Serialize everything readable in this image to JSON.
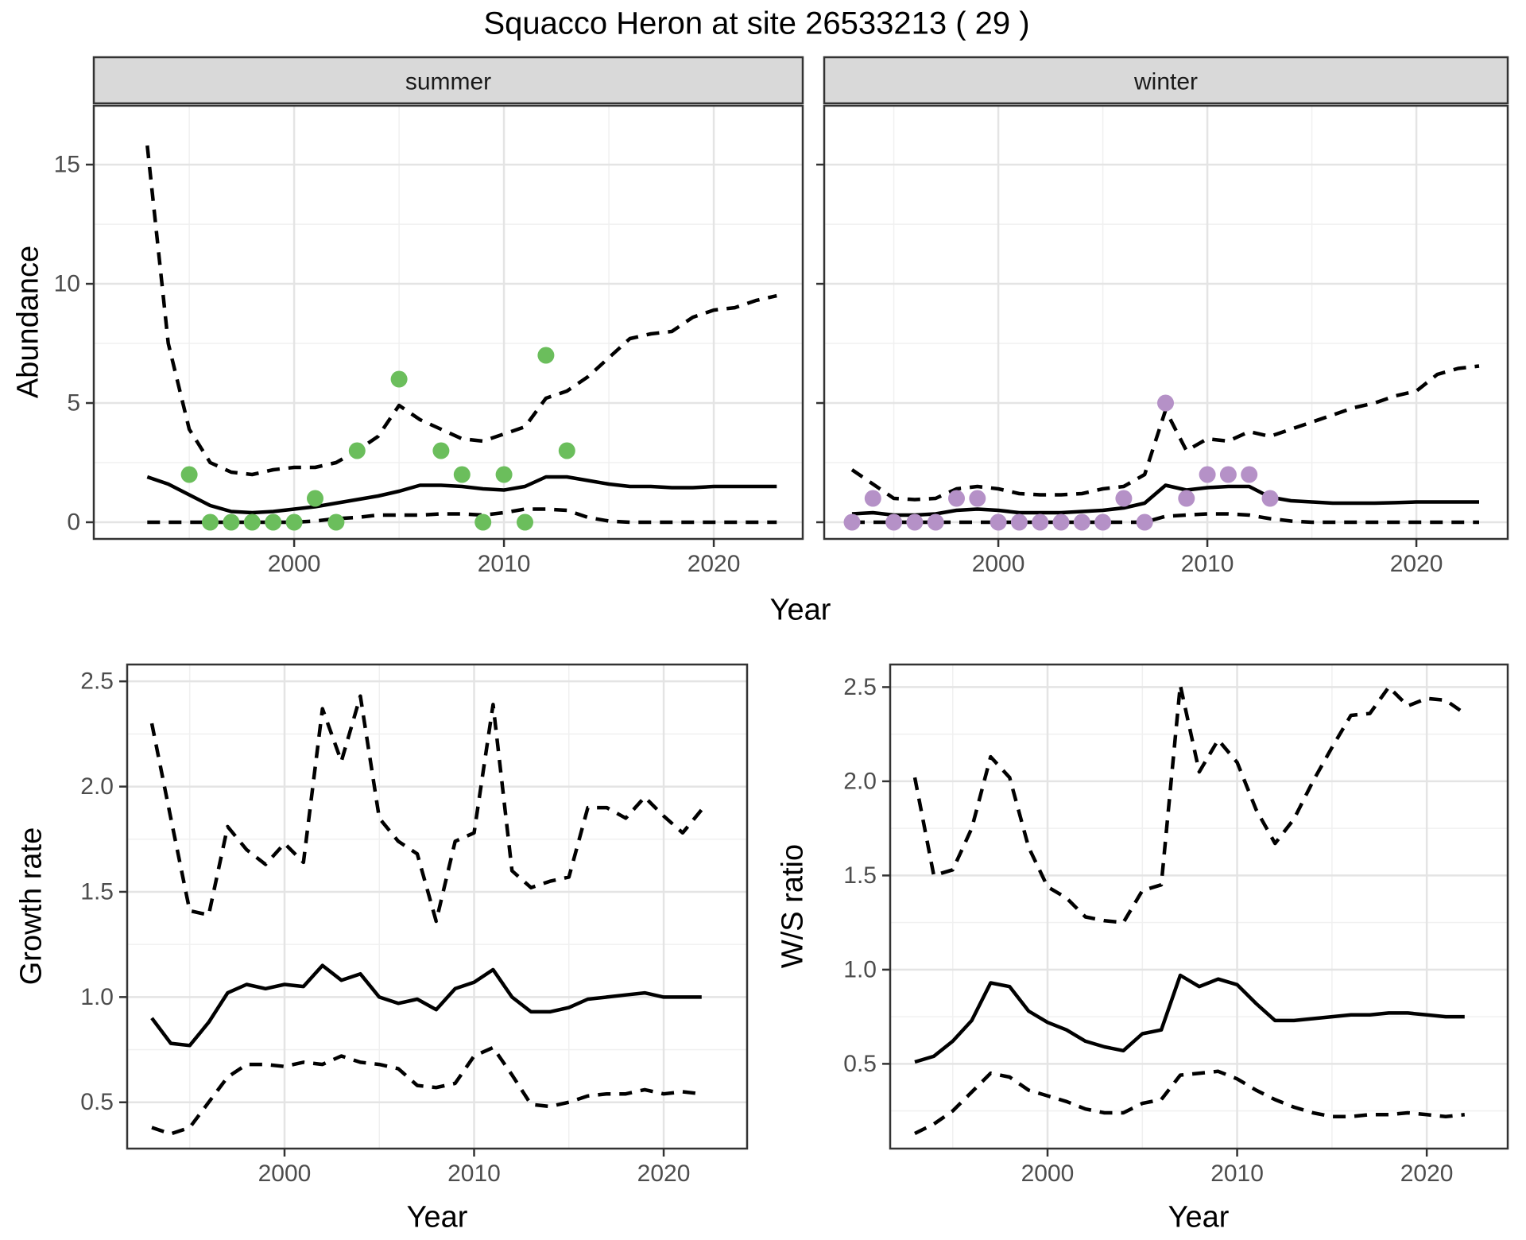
{
  "title": "Squacco Heron at site 26533213 ( 29 )",
  "axis_titles": {
    "abundance": "Abundance",
    "growth": "Growth rate",
    "ws": "W/S ratio",
    "year_top": "Year",
    "year_bottom_left": "Year",
    "year_bottom_right": "Year"
  },
  "colors": {
    "summer_points": "#6BBE5C",
    "winter_points": "#B591C7",
    "line": "#000000",
    "strip_bg": "#D9D9D9",
    "panel_border": "#333333",
    "grid_major": "#e4e4e4",
    "grid_minor": "#f0f0f0",
    "tick_text": "#4d4d4d"
  },
  "chart_data": [
    {
      "id": "abundance-summer",
      "type": "line",
      "facet_label": "summer",
      "ylabel": "Abundance",
      "xlabel": "Year",
      "show_y_labels": true,
      "x_range": [
        1990.45,
        2024.24
      ],
      "y_range": [
        -0.7,
        17.47
      ],
      "x_ticks": {
        "major": [
          2000,
          2010,
          2020
        ],
        "labels": [
          "2000",
          "2010",
          "2020"
        ],
        "minor": [
          1995,
          2005,
          2015
        ]
      },
      "y_ticks": {
        "major": [
          0,
          5,
          10,
          15
        ],
        "labels": [
          "0",
          "5",
          "10",
          "15"
        ],
        "minor": [
          2.5,
          7.5,
          12.5
        ]
      },
      "x": [
        1993,
        1994,
        1995,
        1996,
        1997,
        1998,
        1999,
        2000,
        2001,
        2002,
        2003,
        2004,
        2005,
        2006,
        2007,
        2008,
        2009,
        2010,
        2011,
        2012,
        2013,
        2014,
        2015,
        2016,
        2017,
        2018,
        2019,
        2020,
        2021,
        2022,
        2023
      ],
      "series": [
        {
          "name": "upper-ci",
          "style": "dashed",
          "values": [
            15.8,
            7.5,
            3.9,
            2.5,
            2.1,
            2.0,
            2.2,
            2.3,
            2.3,
            2.5,
            3.0,
            3.6,
            4.9,
            4.3,
            3.9,
            3.5,
            3.4,
            3.7,
            4.0,
            5.2,
            5.5,
            6.1,
            6.9,
            7.7,
            7.9,
            8.0,
            8.6,
            8.9,
            9.0,
            9.3,
            9.5
          ]
        },
        {
          "name": "fit",
          "style": "solid",
          "values": [
            1.9,
            1.6,
            1.15,
            0.7,
            0.45,
            0.4,
            0.45,
            0.55,
            0.65,
            0.8,
            0.95,
            1.1,
            1.3,
            1.55,
            1.55,
            1.5,
            1.4,
            1.35,
            1.5,
            1.9,
            1.9,
            1.75,
            1.6,
            1.5,
            1.5,
            1.45,
            1.45,
            1.5,
            1.5,
            1.5,
            1.5
          ]
        },
        {
          "name": "lower-ci",
          "style": "dashed",
          "values": [
            0,
            0,
            0,
            0,
            0,
            0,
            0,
            0,
            0.05,
            0.15,
            0.2,
            0.3,
            0.3,
            0.3,
            0.35,
            0.35,
            0.3,
            0.4,
            0.55,
            0.55,
            0.5,
            0.2,
            0.05,
            0,
            0,
            0,
            0,
            0,
            0,
            0,
            0
          ]
        }
      ],
      "observations": {
        "name": "observed-counts-summer",
        "color": "#6BBE5C",
        "years": [
          1995,
          1996,
          1997,
          1998,
          1999,
          2000,
          2001,
          2002,
          2003,
          2005,
          2007,
          2008,
          2009,
          2010,
          2011,
          2012,
          2013
        ],
        "values": [
          2,
          0,
          0,
          0,
          0,
          0,
          1,
          0,
          3,
          6,
          3,
          2,
          0,
          2,
          0,
          7,
          3
        ]
      }
    },
    {
      "id": "abundance-winter",
      "type": "line",
      "facet_label": "winter",
      "ylabel": "Abundance",
      "xlabel": "Year",
      "show_y_labels": false,
      "x_range": [
        1991.67,
        2024.37
      ],
      "y_range": [
        -0.7,
        17.47
      ],
      "x_ticks": {
        "major": [
          2000,
          2010,
          2020
        ],
        "labels": [
          "2000",
          "2010",
          "2020"
        ],
        "minor": [
          1995,
          2005,
          2015
        ]
      },
      "y_ticks": {
        "major": [
          0,
          5,
          10,
          15
        ],
        "labels": [
          "0",
          "5",
          "10",
          "15"
        ],
        "minor": [
          2.5,
          7.5,
          12.5
        ]
      },
      "x": [
        1993,
        1994,
        1995,
        1996,
        1997,
        1998,
        1999,
        2000,
        2001,
        2002,
        2003,
        2004,
        2005,
        2006,
        2007,
        2008,
        2009,
        2010,
        2011,
        2012,
        2013,
        2014,
        2015,
        2016,
        2017,
        2018,
        2019,
        2020,
        2021,
        2022,
        2023
      ],
      "series": [
        {
          "name": "upper-ci",
          "style": "dashed",
          "values": [
            2.2,
            1.6,
            1.0,
            0.95,
            1.0,
            1.4,
            1.5,
            1.4,
            1.2,
            1.15,
            1.15,
            1.2,
            1.4,
            1.5,
            2.0,
            4.7,
            3.0,
            3.5,
            3.4,
            3.8,
            3.6,
            3.9,
            4.2,
            4.5,
            4.8,
            5.0,
            5.3,
            5.5,
            6.2,
            6.45,
            6.55
          ]
        },
        {
          "name": "fit",
          "style": "solid",
          "values": [
            0.35,
            0.4,
            0.3,
            0.3,
            0.35,
            0.5,
            0.55,
            0.5,
            0.4,
            0.4,
            0.4,
            0.45,
            0.5,
            0.6,
            0.8,
            1.55,
            1.35,
            1.45,
            1.5,
            1.5,
            1.05,
            0.9,
            0.85,
            0.8,
            0.8,
            0.8,
            0.82,
            0.85,
            0.85,
            0.85,
            0.85
          ]
        },
        {
          "name": "lower-ci",
          "style": "dashed",
          "values": [
            0,
            0,
            0,
            0,
            0,
            0,
            0,
            0,
            0,
            0,
            0,
            0,
            0,
            0,
            0,
            0.25,
            0.3,
            0.35,
            0.35,
            0.3,
            0.15,
            0.05,
            0,
            0,
            0,
            0,
            0,
            0,
            0,
            0,
            0
          ]
        }
      ],
      "observations": {
        "name": "observed-counts-winter",
        "color": "#B591C7",
        "years": [
          1993,
          1994,
          1995,
          1996,
          1997,
          1998,
          1999,
          2000,
          2001,
          2002,
          2003,
          2004,
          2005,
          2006,
          2007,
          2008,
          2009,
          2010,
          2011,
          2012,
          2013
        ],
        "values": [
          0,
          1,
          0,
          0,
          0,
          1,
          1,
          0,
          0,
          0,
          0,
          0,
          0,
          1,
          0,
          5,
          1,
          2,
          2,
          2,
          1
        ]
      }
    },
    {
      "id": "growth-rate",
      "type": "line",
      "facet_label": null,
      "ylabel": "Growth rate",
      "xlabel": "Year",
      "show_y_labels": true,
      "x_range": [
        1991.7,
        2024.4
      ],
      "y_range": [
        0.28,
        2.58
      ],
      "x_ticks": {
        "major": [
          2000,
          2010,
          2020
        ],
        "labels": [
          "2000",
          "2010",
          "2020"
        ],
        "minor": [
          1995,
          2005,
          2015
        ]
      },
      "y_ticks": {
        "major": [
          0.5,
          1.0,
          1.5,
          2.0,
          2.5
        ],
        "labels": [
          "0.5",
          "1.0",
          "1.5",
          "2.0",
          "2.5"
        ],
        "minor": [
          0.75,
          1.25,
          1.75,
          2.25
        ]
      },
      "x": [
        1993,
        1994,
        1995,
        1996,
        1997,
        1998,
        1999,
        2000,
        2001,
        2002,
        2003,
        2004,
        2005,
        2006,
        2007,
        2008,
        2009,
        2010,
        2011,
        2012,
        2013,
        2014,
        2015,
        2016,
        2017,
        2018,
        2019,
        2020,
        2021,
        2022
      ],
      "series": [
        {
          "name": "upper-ci",
          "style": "dashed",
          "values": [
            2.3,
            1.85,
            1.41,
            1.39,
            1.81,
            1.7,
            1.63,
            1.73,
            1.64,
            2.37,
            2.12,
            2.43,
            1.85,
            1.74,
            1.68,
            1.36,
            1.74,
            1.78,
            2.39,
            1.6,
            1.52,
            1.55,
            1.57,
            1.9,
            1.9,
            1.85,
            1.95,
            1.86,
            1.78,
            1.89
          ]
        },
        {
          "name": "fit",
          "style": "solid",
          "values": [
            0.9,
            0.78,
            0.77,
            0.88,
            1.02,
            1.06,
            1.04,
            1.06,
            1.05,
            1.15,
            1.08,
            1.11,
            1.0,
            0.97,
            0.99,
            0.94,
            1.04,
            1.07,
            1.13,
            1.0,
            0.93,
            0.93,
            0.95,
            0.99,
            1.0,
            1.01,
            1.02,
            1.0,
            1.0,
            1.0
          ]
        },
        {
          "name": "lower-ci",
          "style": "dashed",
          "values": [
            0.38,
            0.35,
            0.38,
            0.5,
            0.62,
            0.68,
            0.68,
            0.67,
            0.69,
            0.68,
            0.72,
            0.69,
            0.68,
            0.66,
            0.58,
            0.57,
            0.59,
            0.72,
            0.76,
            0.63,
            0.49,
            0.48,
            0.5,
            0.53,
            0.54,
            0.54,
            0.56,
            0.54,
            0.55,
            0.54
          ]
        }
      ],
      "observations": null
    },
    {
      "id": "ws-ratio",
      "type": "line",
      "facet_label": null,
      "ylabel": "W/S ratio",
      "xlabel": "Year",
      "show_y_labels": true,
      "x_range": [
        1991.7,
        2024.27
      ],
      "y_range": [
        0.05,
        2.62
      ],
      "x_ticks": {
        "major": [
          2000,
          2010,
          2020
        ],
        "labels": [
          "2000",
          "2010",
          "2020"
        ],
        "minor": [
          1995,
          2005,
          2015
        ]
      },
      "y_ticks": {
        "major": [
          0.5,
          1.0,
          1.5,
          2.0,
          2.5
        ],
        "labels": [
          "0.5",
          "1.0",
          "1.5",
          "2.0",
          "2.5"
        ],
        "minor": [
          0.25,
          0.75,
          1.25,
          1.75,
          2.25
        ]
      },
      "x": [
        1993,
        1994,
        1995,
        1996,
        1997,
        1998,
        1999,
        2000,
        2001,
        2002,
        2003,
        2004,
        2005,
        2006,
        2007,
        2008,
        2009,
        2010,
        2011,
        2012,
        2013,
        2014,
        2015,
        2016,
        2017,
        2018,
        2019,
        2020,
        2021,
        2022
      ],
      "series": [
        {
          "name": "upper-ci",
          "style": "dashed",
          "values": [
            2.02,
            1.5,
            1.53,
            1.75,
            2.13,
            2.02,
            1.65,
            1.44,
            1.38,
            1.28,
            1.26,
            1.25,
            1.42,
            1.45,
            2.51,
            2.05,
            2.22,
            2.1,
            1.85,
            1.67,
            1.8,
            2.0,
            2.18,
            2.35,
            2.36,
            2.5,
            2.4,
            2.44,
            2.43,
            2.36
          ]
        },
        {
          "name": "fit",
          "style": "solid",
          "values": [
            0.51,
            0.54,
            0.62,
            0.73,
            0.93,
            0.91,
            0.78,
            0.72,
            0.68,
            0.62,
            0.59,
            0.57,
            0.66,
            0.68,
            0.97,
            0.91,
            0.95,
            0.92,
            0.82,
            0.73,
            0.73,
            0.74,
            0.75,
            0.76,
            0.76,
            0.77,
            0.77,
            0.76,
            0.75,
            0.75
          ]
        },
        {
          "name": "lower-ci",
          "style": "dashed",
          "values": [
            0.13,
            0.18,
            0.25,
            0.35,
            0.45,
            0.43,
            0.36,
            0.33,
            0.3,
            0.26,
            0.24,
            0.24,
            0.29,
            0.31,
            0.44,
            0.45,
            0.46,
            0.42,
            0.36,
            0.31,
            0.27,
            0.24,
            0.22,
            0.22,
            0.23,
            0.23,
            0.24,
            0.23,
            0.22,
            0.23
          ]
        }
      ],
      "observations": null
    }
  ]
}
